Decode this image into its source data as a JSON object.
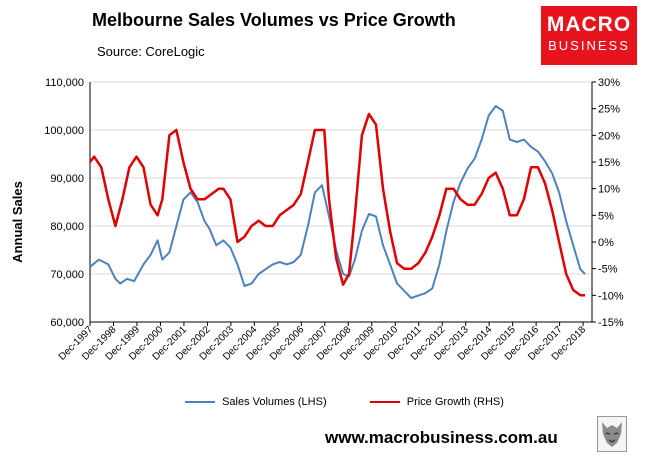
{
  "header": {
    "title": "Melbourne Sales Volumes vs Price Growth",
    "source": "Source: CoreLogic"
  },
  "logo": {
    "line1": "MACRO",
    "line2": "BUSINESS"
  },
  "footer": {
    "website": "www.macrobusiness.com.au"
  },
  "colors": {
    "sales": "#4f81bd",
    "price": "#e00000",
    "grid": "#d9d9d9",
    "axis": "#000000"
  },
  "chart_data": {
    "type": "line",
    "title": "Melbourne Sales Volumes vs Price Growth",
    "ylabel_left": "Annual Sales",
    "ylim_left": [
      60000,
      110000
    ],
    "ylim_right": [
      -15,
      30
    ],
    "yticks_left": [
      "60,000",
      "70,000",
      "80,000",
      "90,000",
      "100,000",
      "110,000"
    ],
    "yticks_right": [
      "-15%",
      "-10%",
      "-5%",
      "0%",
      "5%",
      "10%",
      "15%",
      "20%",
      "25%",
      "30%"
    ],
    "xlim": [
      1997.92,
      2019.3
    ],
    "x_tick_labels": [
      "Dec-1997",
      "Dec-1998",
      "Dec-1999",
      "Dec-2000",
      "Dec-2001",
      "Dec-2002",
      "Dec-2003",
      "Dec-2004",
      "Dec-2005",
      "Dec-2006",
      "Dec-2007",
      "Dec-2008",
      "Dec-2009",
      "Dec-2010",
      "Dec-2011",
      "Dec-2012",
      "Dec-2013",
      "Dec-2014",
      "Dec-2015",
      "Dec-2016",
      "Dec-2017",
      "Dec-2018"
    ],
    "series": [
      {
        "name": "Sales Volumes (LHS)",
        "axis": "left",
        "x": [
          1997.92,
          1998.3,
          1998.7,
          1999.0,
          1999.2,
          1999.5,
          1999.8,
          2000.2,
          2000.5,
          2000.8,
          2001.0,
          2001.3,
          2001.6,
          2001.9,
          2002.2,
          2002.5,
          2002.8,
          2003.0,
          2003.3,
          2003.6,
          2003.9,
          2004.2,
          2004.5,
          2004.8,
          2005.1,
          2005.4,
          2005.7,
          2006.0,
          2006.3,
          2006.6,
          2006.9,
          2007.2,
          2007.5,
          2007.8,
          2008.1,
          2008.4,
          2008.7,
          2008.95,
          2009.2,
          2009.5,
          2009.8,
          2010.1,
          2010.4,
          2010.7,
          2011.0,
          2011.3,
          2011.6,
          2011.9,
          2012.2,
          2012.5,
          2012.8,
          2013.1,
          2013.4,
          2013.7,
          2014.0,
          2014.3,
          2014.6,
          2014.9,
          2015.2,
          2015.5,
          2015.8,
          2016.1,
          2016.4,
          2016.7,
          2017.0,
          2017.3,
          2017.6,
          2017.9,
          2018.2,
          2018.5,
          2018.8,
          2019.0
        ],
        "values": [
          71500,
          73000,
          72000,
          69000,
          68000,
          69000,
          68500,
          72000,
          74000,
          77000,
          73000,
          74500,
          80000,
          85500,
          87000,
          85000,
          81000,
          79500,
          76000,
          77000,
          75500,
          72000,
          67500,
          68000,
          70000,
          71000,
          72000,
          72500,
          72000,
          72500,
          74000,
          80000,
          87000,
          88500,
          82000,
          75000,
          70000,
          69500,
          73000,
          79000,
          82500,
          82000,
          76000,
          72000,
          68000,
          66500,
          65000,
          65500,
          66000,
          67000,
          72000,
          79000,
          85000,
          89000,
          92000,
          94000,
          98000,
          103000,
          105000,
          104000,
          98000,
          97500,
          98000,
          96500,
          95500,
          93500,
          91000,
          87000,
          81000,
          76000,
          71000,
          70000
        ]
      },
      {
        "name": "Price Growth (RHS)",
        "axis": "right",
        "x": [
          1997.92,
          1998.1,
          1998.4,
          1998.7,
          1999.0,
          1999.3,
          1999.6,
          1999.9,
          2000.2,
          2000.5,
          2000.8,
          2001.0,
          2001.3,
          2001.6,
          2001.9,
          2002.2,
          2002.5,
          2002.8,
          2003.1,
          2003.4,
          2003.6,
          2003.9,
          2004.2,
          2004.5,
          2004.8,
          2005.1,
          2005.4,
          2005.7,
          2006.0,
          2006.3,
          2006.6,
          2006.9,
          2007.2,
          2007.5,
          2007.9,
          2008.1,
          2008.4,
          2008.7,
          2008.95,
          2009.2,
          2009.5,
          2009.8,
          2010.1,
          2010.4,
          2010.7,
          2011.0,
          2011.3,
          2011.6,
          2011.9,
          2012.2,
          2012.5,
          2012.8,
          2013.1,
          2013.4,
          2013.7,
          2014.0,
          2014.3,
          2014.6,
          2014.9,
          2015.2,
          2015.5,
          2015.8,
          2016.1,
          2016.4,
          2016.7,
          2017.0,
          2017.3,
          2017.6,
          2017.9,
          2018.2,
          2018.5,
          2018.8,
          2019.0
        ],
        "values": [
          15,
          16,
          14,
          8,
          3,
          8,
          14,
          16,
          14,
          7,
          5,
          8,
          20,
          21,
          15,
          10,
          8,
          8,
          9,
          10,
          10,
          8,
          0,
          1,
          3,
          4,
          3,
          3,
          5,
          6,
          7,
          9,
          15,
          21,
          21,
          8,
          -3,
          -8,
          -6,
          5,
          20,
          24,
          22,
          10,
          2,
          -4,
          -5,
          -5,
          -4,
          -2,
          1,
          5,
          10,
          10,
          8,
          7,
          7,
          9,
          12,
          13,
          10,
          5,
          5,
          8,
          14,
          14,
          11,
          6,
          0,
          -6,
          -9,
          -10,
          -10
        ]
      }
    ]
  }
}
